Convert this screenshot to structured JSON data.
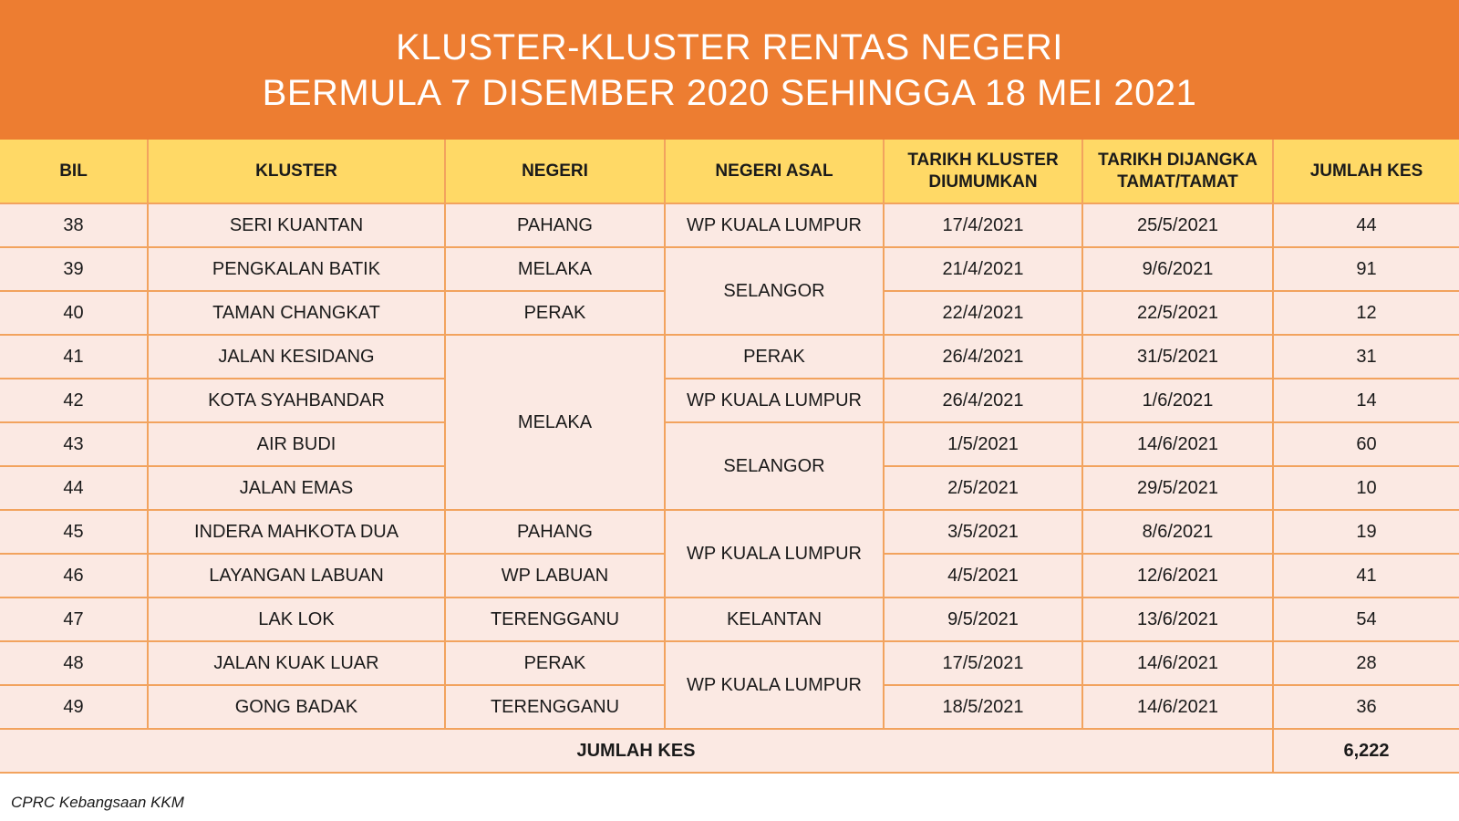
{
  "title": {
    "line1": "KLUSTER-KLUSTER RENTAS NEGERI",
    "line2": "BERMULA 7 DISEMBER 2020 SEHINGGA 18 MEI 2021"
  },
  "columns": {
    "bil": "BIL",
    "kluster": "KLUSTER",
    "negeri": "NEGERI",
    "negeri_asal": "NEGERI ASAL",
    "tarikh_diumumkan_1": "TARIKH KLUSTER",
    "tarikh_diumumkan_2": "DIUMUMKAN",
    "tarikh_tamat_1": "TARIKH DIJANGKA",
    "tarikh_tamat_2": "TAMAT/TAMAT",
    "jumlah_kes": "JUMLAH KES"
  },
  "rows": [
    {
      "bil": "38",
      "kluster": "SERI KUANTAN",
      "announced": "17/4/2021",
      "end": "25/5/2021",
      "cases": "44"
    },
    {
      "bil": "39",
      "kluster": "PENGKALAN BATIK",
      "announced": "21/4/2021",
      "end": "9/6/2021",
      "cases": "91"
    },
    {
      "bil": "40",
      "kluster": "TAMAN CHANGKAT",
      "announced": "22/4/2021",
      "end": "22/5/2021",
      "cases": "12"
    },
    {
      "bil": "41",
      "kluster": "JALAN KESIDANG",
      "announced": "26/4/2021",
      "end": "31/5/2021",
      "cases": "31"
    },
    {
      "bil": "42",
      "kluster": "KOTA SYAHBANDAR",
      "announced": "26/4/2021",
      "end": "1/6/2021",
      "cases": "14"
    },
    {
      "bil": "43",
      "kluster": "AIR BUDI",
      "announced": "1/5/2021",
      "end": "14/6/2021",
      "cases": "60"
    },
    {
      "bil": "44",
      "kluster": "JALAN EMAS",
      "announced": "2/5/2021",
      "end": "29/5/2021",
      "cases": "10"
    },
    {
      "bil": "45",
      "kluster": "INDERA MAHKOTA DUA",
      "announced": "3/5/2021",
      "end": "8/6/2021",
      "cases": "19"
    },
    {
      "bil": "46",
      "kluster": "LAYANGAN LABUAN",
      "announced": "4/5/2021",
      "end": "12/6/2021",
      "cases": "41"
    },
    {
      "bil": "47",
      "kluster": "LAK LOK",
      "announced": "9/5/2021",
      "end": "13/6/2021",
      "cases": "54"
    },
    {
      "bil": "48",
      "kluster": "JALAN KUAK LUAR",
      "announced": "17/5/2021",
      "end": "14/6/2021",
      "cases": "28"
    },
    {
      "bil": "49",
      "kluster": "GONG BADAK",
      "announced": "18/5/2021",
      "end": "14/6/2021",
      "cases": "36"
    }
  ],
  "negeri_cells": [
    {
      "value": "PAHANG",
      "first_row": 0,
      "span": 1
    },
    {
      "value": "MELAKA",
      "first_row": 1,
      "span": 1
    },
    {
      "value": "PERAK",
      "first_row": 2,
      "span": 1
    },
    {
      "value": "MELAKA",
      "first_row": 3,
      "span": 4
    },
    {
      "value": "PAHANG",
      "first_row": 7,
      "span": 1
    },
    {
      "value": "WP LABUAN",
      "first_row": 8,
      "span": 1
    },
    {
      "value": "TERENGGANU",
      "first_row": 9,
      "span": 1
    },
    {
      "value": "PERAK",
      "first_row": 10,
      "span": 1
    },
    {
      "value": "TERENGGANU",
      "first_row": 11,
      "span": 1
    }
  ],
  "negeri_asal_cells": [
    {
      "value": "WP KUALA LUMPUR",
      "first_row": 0,
      "span": 1
    },
    {
      "value": "SELANGOR",
      "first_row": 1,
      "span": 2
    },
    {
      "value": "PERAK",
      "first_row": 3,
      "span": 1
    },
    {
      "value": "WP KUALA LUMPUR",
      "first_row": 4,
      "span": 1
    },
    {
      "value": "SELANGOR",
      "first_row": 5,
      "span": 2
    },
    {
      "value": "WP KUALA LUMPUR",
      "first_row": 7,
      "span": 2
    },
    {
      "value": "KELANTAN",
      "first_row": 9,
      "span": 1
    },
    {
      "value": "WP KUALA LUMPUR",
      "first_row": 10,
      "span": 2
    }
  ],
  "total": {
    "label": "JUMLAH KES",
    "value": "6,222"
  },
  "source": "CPRC Kebangsaan KKM",
  "colors": {
    "banner": "#ED7D31",
    "header": "#FFD966",
    "row": "#FBE9E3",
    "border": "#F2A35E"
  }
}
